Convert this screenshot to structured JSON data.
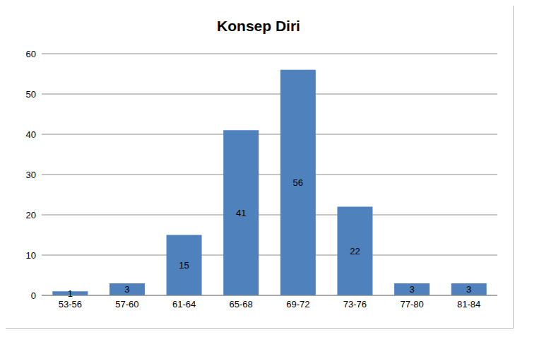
{
  "chart_data": {
    "type": "bar",
    "title": "Konsep Diri",
    "categories": [
      "53-56",
      "57-60",
      "61-64",
      "65-68",
      "69-72",
      "73-76",
      "77-80",
      "81-84"
    ],
    "values": [
      1,
      3,
      15,
      41,
      56,
      22,
      3,
      3
    ],
    "color": "#4f81bd",
    "ylim": [
      0,
      60
    ],
    "yticks": [
      0,
      10,
      20,
      30,
      40,
      50,
      60
    ],
    "grid": true,
    "data_labels": true
  }
}
